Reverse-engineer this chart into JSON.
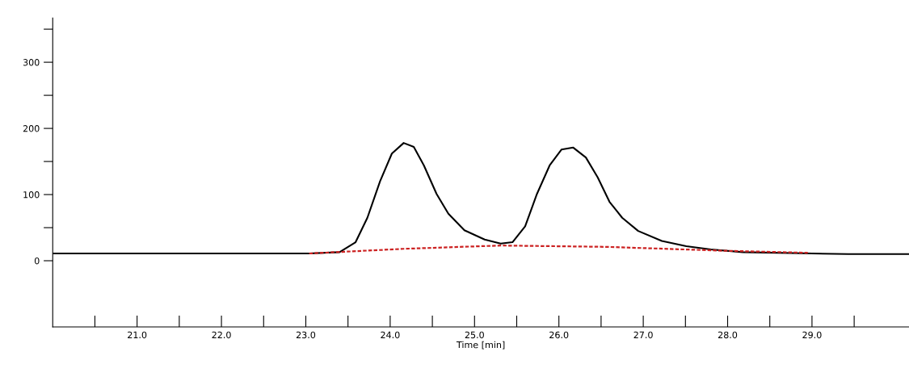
{
  "chart_data": {
    "type": "line",
    "xlabel": "Time [min]",
    "xlim": [
      20.0,
      30.15
    ],
    "ylim": [
      -100,
      367
    ],
    "xticks": [
      {
        "value": 20.5,
        "label": null
      },
      {
        "value": 21,
        "label": "21.0"
      },
      {
        "value": 21.5,
        "label": null
      },
      {
        "value": 22,
        "label": "22.0"
      },
      {
        "value": 22.5,
        "label": null
      },
      {
        "value": 23,
        "label": "23.0"
      },
      {
        "value": 23.5,
        "label": null
      },
      {
        "value": 24,
        "label": "24.0"
      },
      {
        "value": 24.5,
        "label": null
      },
      {
        "value": 25,
        "label": "25.0"
      },
      {
        "value": 25.5,
        "label": null
      },
      {
        "value": 26,
        "label": "26.0"
      },
      {
        "value": 26.5,
        "label": null
      },
      {
        "value": 27,
        "label": "27.0"
      },
      {
        "value": 27.5,
        "label": null
      },
      {
        "value": 28,
        "label": "28.0"
      },
      {
        "value": 28.5,
        "label": null
      },
      {
        "value": 29,
        "label": "29.0"
      },
      {
        "value": 29.5,
        "label": null
      }
    ],
    "yticks": [
      0,
      {
        "value": 50,
        "label": null
      },
      100,
      {
        "value": 150,
        "label": null
      },
      200,
      {
        "value": 250,
        "label": null
      },
      300,
      {
        "value": 350,
        "label": null
      }
    ],
    "grid": false,
    "legend": false,
    "marker": "none",
    "series": [
      {
        "color": "#000000",
        "line_style": "solid",
        "x": [
          20.0,
          23.04,
          23.4,
          23.59,
          23.73,
          23.88,
          24.02,
          24.16,
          24.28,
          24.4,
          24.55,
          24.69,
          24.88,
          25.12,
          25.31,
          25.45,
          25.6,
          25.74,
          25.89,
          26.03,
          26.17,
          26.32,
          26.46,
          26.6,
          26.75,
          26.94,
          27.22,
          27.51,
          27.8,
          28.18,
          29.43,
          30.14
        ],
        "values": [
          11,
          11,
          13,
          28,
          65,
          120,
          162,
          178,
          172,
          144,
          101,
          71,
          46,
          32,
          26,
          28,
          52,
          101,
          144,
          168,
          171,
          156,
          126,
          89,
          65,
          45,
          30,
          22,
          17,
          13,
          10,
          10
        ]
      },
      {
        "color": "#cc2222",
        "line_style": "dashed",
        "x": [
          23.04,
          24.16,
          25.31,
          26.55,
          27.99,
          28.95
        ],
        "values": [
          11,
          18,
          23,
          21,
          15,
          12
        ]
      }
    ]
  }
}
